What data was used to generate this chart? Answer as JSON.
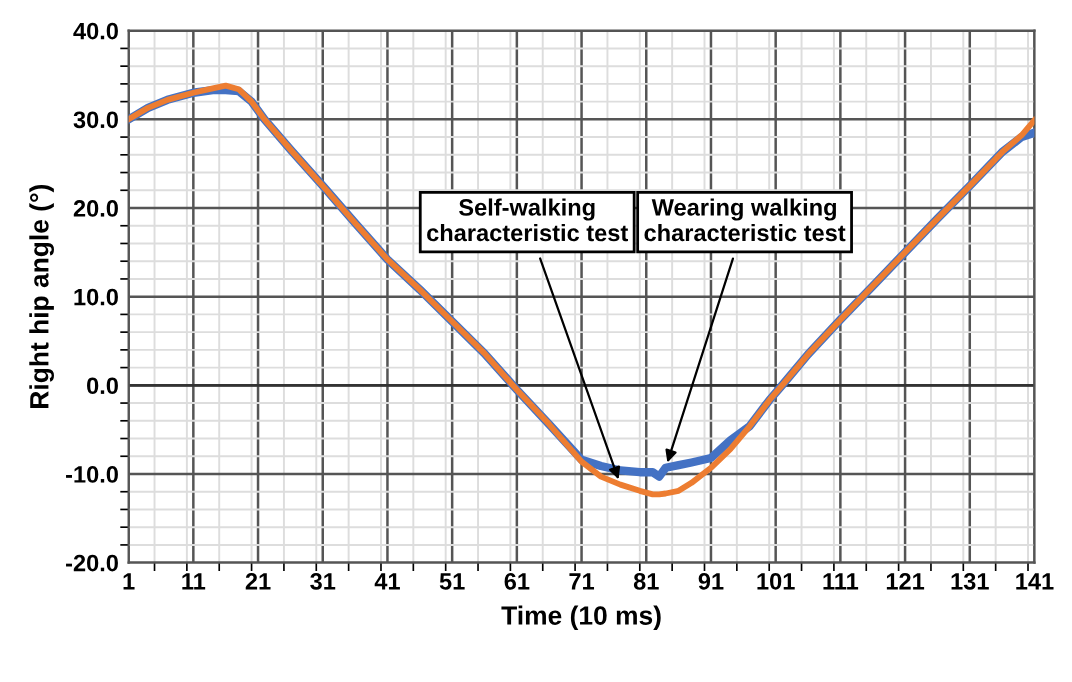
{
  "chart_data": {
    "type": "line",
    "xlabel": "Time (10 ms)",
    "ylabel": "Right hip angle (°)",
    "x": [
      1,
      4,
      7,
      11,
      14,
      16,
      18,
      20,
      22,
      26,
      31,
      36,
      41,
      46,
      51,
      56,
      61,
      66,
      71,
      74,
      77,
      80,
      82,
      83,
      84,
      86,
      88,
      91,
      94,
      97,
      100,
      102,
      106,
      111,
      116,
      121,
      126,
      131,
      136,
      139,
      141
    ],
    "series": [
      {
        "color": "#4472c4",
        "values": [
          30,
          31.3,
          32.2,
          33,
          33.3,
          33.3,
          33.2,
          32,
          30,
          26.6,
          22.5,
          18.3,
          14.2,
          10.8,
          7.2,
          3.6,
          -0.5,
          -4.4,
          -8.4,
          -9.1,
          -9.6,
          -9.8,
          -9.8,
          -10.3,
          -9.3,
          -9.0,
          -8.7,
          -8.2,
          -6.2,
          -4.6,
          -1.7,
          0,
          3.5,
          7.4,
          11.2,
          15,
          18.8,
          22.5,
          26.3,
          28,
          28.5
        ]
      },
      {
        "color": "#ed7d31",
        "values": [
          30,
          31.3,
          32.2,
          33,
          33.5,
          33.8,
          33.4,
          32,
          30,
          26.6,
          22.5,
          18.3,
          14.2,
          10.8,
          7.2,
          3.6,
          -0.5,
          -4.4,
          -8.6,
          -10.3,
          -11.2,
          -11.9,
          -12.3,
          -12.3,
          -12.2,
          -11.9,
          -11,
          -9.3,
          -7.2,
          -4.6,
          -1.7,
          0,
          3.5,
          7.4,
          11.2,
          15,
          18.8,
          22.5,
          26.3,
          28.2,
          29.9
        ]
      }
    ],
    "xlim": [
      1,
      141
    ],
    "xticks": [
      1,
      11,
      21,
      31,
      41,
      51,
      61,
      71,
      81,
      91,
      101,
      111,
      121,
      131,
      141
    ],
    "ylim": [
      -20,
      40
    ],
    "yticks": [
      {
        "value": -20,
        "label": "-20.0"
      },
      {
        "value": -10,
        "label": "-10.0"
      },
      {
        "value": 0,
        "label": "0.0"
      },
      {
        "value": 10,
        "label": "10.0"
      },
      {
        "value": 20,
        "label": "20.0"
      },
      {
        "value": 30,
        "label": "30.0"
      },
      {
        "value": 40,
        "label": "40.0"
      }
    ],
    "annotations": [
      {
        "text": "Self-walking\ncharacteristic test",
        "x": 77,
        "y": -11.2
      },
      {
        "text": "Wearing walking\ncharacteristic test",
        "x": 84,
        "y": -9.3
      }
    ],
    "grid": true,
    "legend": false,
    "marker": "none",
    "line_style": "solid"
  }
}
